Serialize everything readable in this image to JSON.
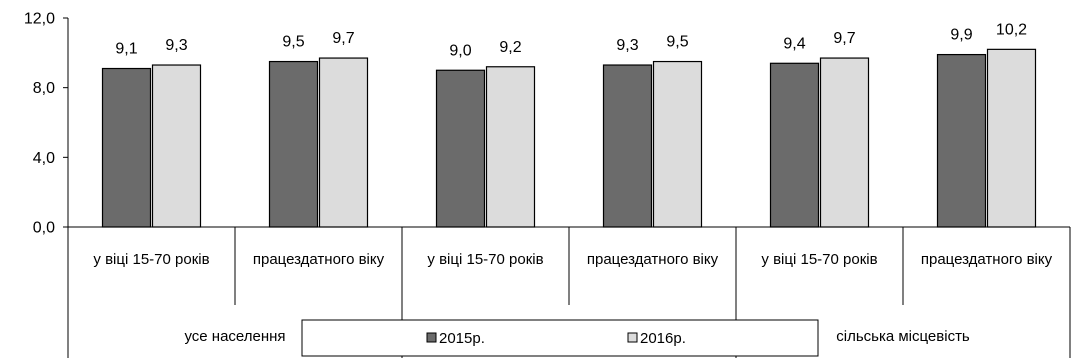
{
  "chart_data": {
    "type": "bar",
    "yticks": [
      "0,0",
      "4,0",
      "8,0",
      "12,0"
    ],
    "ylim": [
      0,
      12
    ],
    "grid": false,
    "legend_position": "bottom-center",
    "categories": [
      "у віці 15-70 років",
      "працездатного віку",
      "у віці 15-70 років",
      "працездатного віку",
      "у віці 15-70 років",
      "працездатного віку"
    ],
    "groups": [
      {
        "label": "усе населення",
        "span": [
          0,
          2
        ]
      },
      {
        "label": "",
        "span": [
          2,
          4
        ]
      },
      {
        "label": "сільська місцевість",
        "span": [
          4,
          6
        ]
      }
    ],
    "series": [
      {
        "name": "2015р.",
        "color": "#6b6b6b",
        "values": [
          9.1,
          9.5,
          9.0,
          9.3,
          9.4,
          9.9
        ],
        "labels": [
          "9,1",
          "9,5",
          "9,0",
          "9,3",
          "9,4",
          "9,9"
        ]
      },
      {
        "name": "2016р.",
        "color": "#dcdcdc",
        "values": [
          9.3,
          9.7,
          9.2,
          9.5,
          9.7,
          10.2
        ],
        "labels": [
          "9,3",
          "9,7",
          "9,2",
          "9,5",
          "9,7",
          "10,2"
        ]
      }
    ]
  }
}
